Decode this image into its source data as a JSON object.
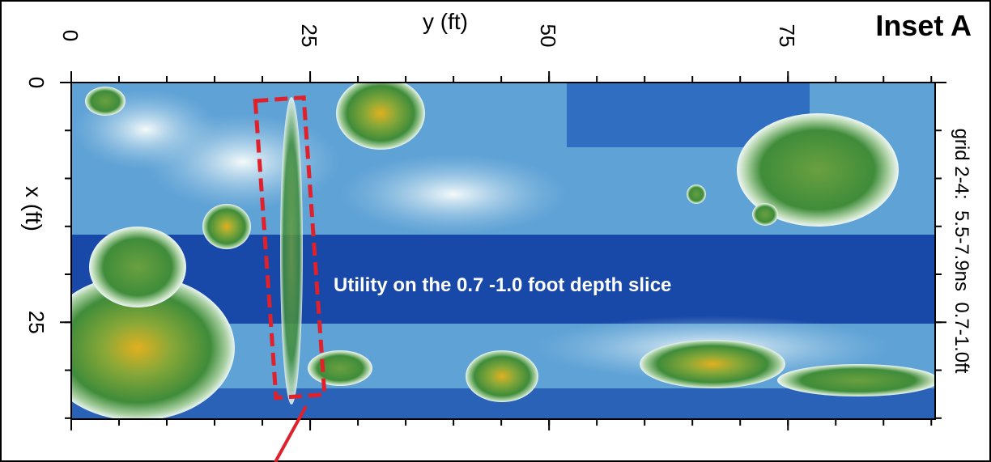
{
  "title": "Inset A",
  "top_axis": {
    "label": "y (ft)",
    "lim": [
      0,
      90.4
    ],
    "ticks": [
      0,
      25,
      50,
      75
    ]
  },
  "left_axis": {
    "label": "x (ft)",
    "lim": [
      0,
      35.1
    ],
    "ticks": [
      0,
      25
    ]
  },
  "side_label": "grid 2-4:  5.5-7.9ns  0.7-1.0ft",
  "annotation": "Utility on the 0.7 -1.0 foot depth slice"
}
